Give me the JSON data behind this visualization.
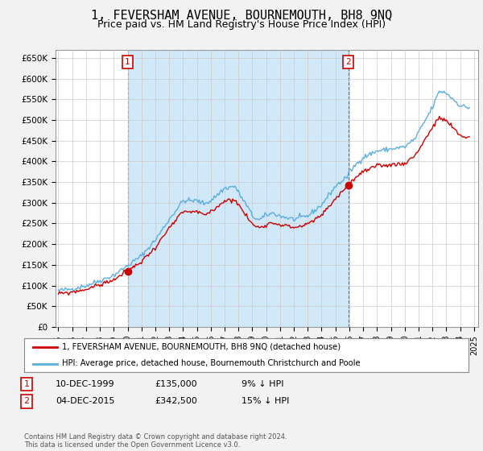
{
  "title": "1, FEVERSHAM AVENUE, BOURNEMOUTH, BH8 9NQ",
  "subtitle": "Price paid vs. HM Land Registry's House Price Index (HPI)",
  "title_fontsize": 11,
  "subtitle_fontsize": 9,
  "ylabel_ticks": [
    "£0",
    "£50K",
    "£100K",
    "£150K",
    "£200K",
    "£250K",
    "£300K",
    "£350K",
    "£400K",
    "£450K",
    "£500K",
    "£550K",
    "£600K",
    "£650K"
  ],
  "ytick_values": [
    0,
    50000,
    100000,
    150000,
    200000,
    250000,
    300000,
    350000,
    400000,
    450000,
    500000,
    550000,
    600000,
    650000
  ],
  "ylim": [
    0,
    670000
  ],
  "xlim_start": 1994.8,
  "xlim_end": 2025.3,
  "hpi_color": "#5baee0",
  "hpi_fill_color": "#d0e8f8",
  "price_color": "#cc0000",
  "marker_color": "#cc0000",
  "grid_color": "#cccccc",
  "background_color": "#f2f2f2",
  "plot_bg_color": "#ffffff",
  "purchase1_year": 2000.0,
  "purchase1_price": 135000,
  "purchase1_label": "1",
  "purchase2_year": 2015.92,
  "purchase2_price": 342500,
  "purchase2_label": "2",
  "legend_line1": "1, FEVERSHAM AVENUE, BOURNEMOUTH, BH8 9NQ (detached house)",
  "legend_line2": "HPI: Average price, detached house, Bournemouth Christchurch and Poole",
  "table_row1": [
    "1",
    "10-DEC-1999",
    "£135,000",
    "9% ↓ HPI"
  ],
  "table_row2": [
    "2",
    "04-DEC-2015",
    "£342,500",
    "15% ↓ HPI"
  ],
  "footer": "Contains HM Land Registry data © Crown copyright and database right 2024.\nThis data is licensed under the Open Government Licence v3.0."
}
